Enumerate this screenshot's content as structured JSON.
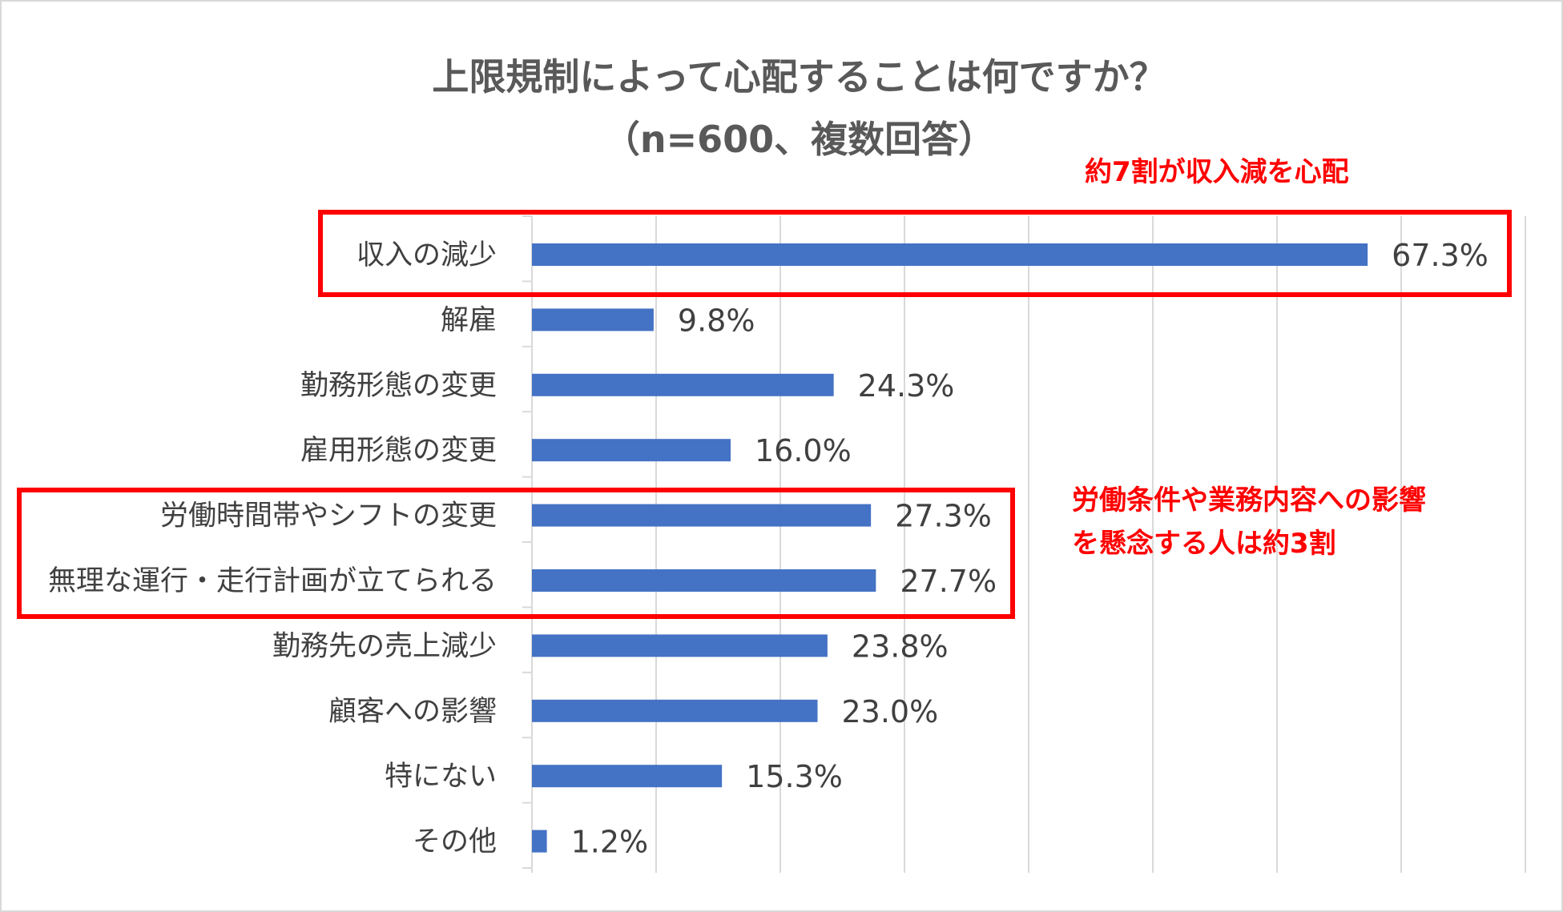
{
  "chart_data": {
    "type": "bar",
    "orientation": "horizontal",
    "title": "上限規制によって心配することは何ですか？",
    "subtitle": "（n=600、複数回答）",
    "categories": [
      "収入の減少",
      "解雇",
      "勤務形態の変更",
      "雇用形態の変更",
      "労働時間帯やシフトの変更",
      "無理な運行・走行計画が立てられる",
      "勤務先の売上減少",
      "顧客への影響",
      "特にない",
      "その他"
    ],
    "values": [
      67.3,
      9.8,
      24.3,
      16.0,
      27.3,
      27.7,
      23.8,
      23.0,
      15.3,
      1.2
    ],
    "value_labels": [
      "67.3%",
      "9.8%",
      "24.3%",
      "16.0%",
      "27.3%",
      "27.7%",
      "23.8%",
      "23.0%",
      "15.3%",
      "1.2%"
    ],
    "xlim": [
      0,
      80
    ],
    "vertical_gridlines": true,
    "legend": "none",
    "highlights": [
      {
        "categories": [
          "収入の減少"
        ],
        "annotation": "約7割が収入減を心配"
      },
      {
        "categories": [
          "労働時間帯やシフトの変更",
          "無理な運行・走行計画が立てられる"
        ],
        "annotation_lines": [
          "労働条件や業務内容への影響",
          "を懸念する人は約3割"
        ]
      }
    ]
  },
  "colors": {
    "bar": "#4472c4",
    "highlight": "#ff0000",
    "gridline": "#d9d9d9",
    "text": "#404040",
    "title": "#595959"
  }
}
